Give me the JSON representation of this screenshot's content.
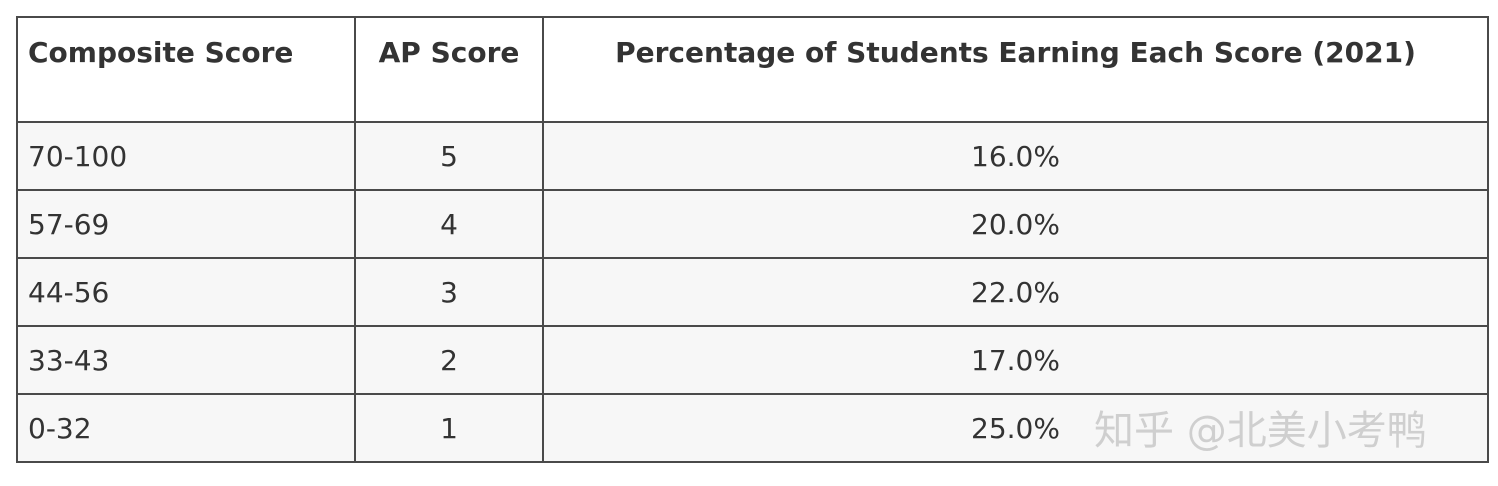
{
  "table": {
    "header": [
      "Composite Score",
      "AP Score",
      "Percentage of Students Earning Each Score (2021)"
    ],
    "rows": [
      [
        "70-100",
        "5",
        "16.0%"
      ],
      [
        "57-69",
        "4",
        "20.0%"
      ],
      [
        "44-56",
        "3",
        "22.0%"
      ],
      [
        "33-43",
        "2",
        "17.0%"
      ],
      [
        "0-32",
        "1",
        "25.0%"
      ]
    ]
  },
  "watermark": "知乎 @北美小考鸭"
}
